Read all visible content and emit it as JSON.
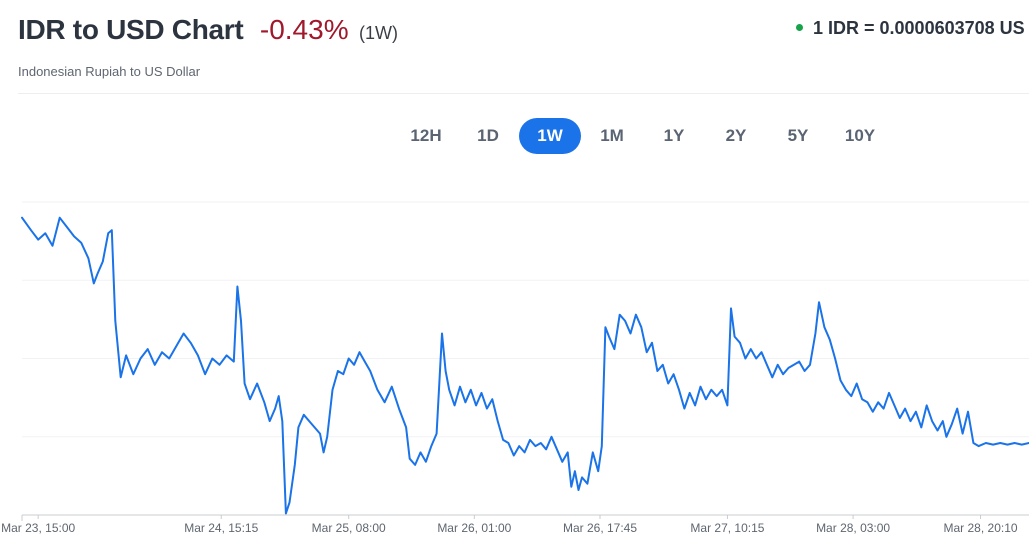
{
  "header": {
    "title": "IDR to USD Chart",
    "change": "-0.43%",
    "period": "(1W)",
    "subtitle": "Indonesian Rupiah to US Dollar",
    "rate": "1 IDR = 0.0000603708 US"
  },
  "tabs": [
    {
      "label": "12H",
      "active": false
    },
    {
      "label": "1D",
      "active": false
    },
    {
      "label": "1W",
      "active": true
    },
    {
      "label": "1M",
      "active": false
    },
    {
      "label": "1Y",
      "active": false
    },
    {
      "label": "2Y",
      "active": false
    },
    {
      "label": "5Y",
      "active": false
    },
    {
      "label": "10Y",
      "active": false
    }
  ],
  "colors": {
    "line": "#1a73e8",
    "negative": "#a0182c",
    "live_dot": "#16a34a",
    "active_tab": "#1a73e8"
  },
  "chart_data": {
    "type": "line",
    "title": "IDR to USD Chart",
    "xlabel": "",
    "ylabel": "",
    "grid": true,
    "x_ticks": [
      "Mar 23, 15:00",
      "Mar 24, 15:15",
      "Mar 25, 08:00",
      "Mar 26, 01:00",
      "Mar 26, 17:45",
      "Mar 27, 10:15",
      "Mar 28, 03:00",
      "Mar 28, 20:10"
    ],
    "x_tick_positions": [
      0.09,
      1.11,
      1.82,
      2.52,
      3.22,
      3.93,
      4.63,
      5.34
    ],
    "x_range": [
      0,
      5.61
    ],
    "ylim": [
      0,
      100
    ],
    "series": [
      {
        "values": [
          [
            0.0,
            95.0
          ],
          [
            0.05,
            91.0
          ],
          [
            0.09,
            88.0
          ],
          [
            0.13,
            90.0
          ],
          [
            0.17,
            86.0
          ],
          [
            0.21,
            95.0
          ],
          [
            0.25,
            92.0
          ],
          [
            0.29,
            89.0
          ],
          [
            0.33,
            87.0
          ],
          [
            0.37,
            82.0
          ],
          [
            0.4,
            74.0
          ],
          [
            0.42,
            77.0
          ],
          [
            0.45,
            81.0
          ],
          [
            0.48,
            90.0
          ],
          [
            0.5,
            91.0
          ],
          [
            0.52,
            62.0
          ],
          [
            0.55,
            44.0
          ],
          [
            0.58,
            51.0
          ],
          [
            0.62,
            45.0
          ],
          [
            0.66,
            50.0
          ],
          [
            0.7,
            53.0
          ],
          [
            0.74,
            48.0
          ],
          [
            0.78,
            52.0
          ],
          [
            0.82,
            50.0
          ],
          [
            0.86,
            54.0
          ],
          [
            0.9,
            58.0
          ],
          [
            0.94,
            55.0
          ],
          [
            0.98,
            51.0
          ],
          [
            1.02,
            45.0
          ],
          [
            1.06,
            50.0
          ],
          [
            1.1,
            48.0
          ],
          [
            1.14,
            51.0
          ],
          [
            1.18,
            49.0
          ],
          [
            1.2,
            73.0
          ],
          [
            1.22,
            62.0
          ],
          [
            1.24,
            42.0
          ],
          [
            1.27,
            37.0
          ],
          [
            1.31,
            42.0
          ],
          [
            1.35,
            36.0
          ],
          [
            1.38,
            30.0
          ],
          [
            1.41,
            34.0
          ],
          [
            1.43,
            38.0
          ],
          [
            1.45,
            30.0
          ],
          [
            1.47,
            0.5
          ],
          [
            1.49,
            4.0
          ],
          [
            1.52,
            16.0
          ],
          [
            1.54,
            28.0
          ],
          [
            1.57,
            32.0
          ],
          [
            1.6,
            30.0
          ],
          [
            1.63,
            28.0
          ],
          [
            1.66,
            26.0
          ],
          [
            1.68,
            20.0
          ],
          [
            1.7,
            25.0
          ],
          [
            1.73,
            40.0
          ],
          [
            1.76,
            46.0
          ],
          [
            1.79,
            45.0
          ],
          [
            1.82,
            50.0
          ],
          [
            1.85,
            48.0
          ],
          [
            1.88,
            52.0
          ],
          [
            1.91,
            49.0
          ],
          [
            1.94,
            46.0
          ],
          [
            1.98,
            40.0
          ],
          [
            2.02,
            36.0
          ],
          [
            2.06,
            41.0
          ],
          [
            2.1,
            34.0
          ],
          [
            2.14,
            28.0
          ],
          [
            2.16,
            18.0
          ],
          [
            2.19,
            16.0
          ],
          [
            2.22,
            20.0
          ],
          [
            2.25,
            17.0
          ],
          [
            2.28,
            22.0
          ],
          [
            2.31,
            26.0
          ],
          [
            2.34,
            58.0
          ],
          [
            2.36,
            46.0
          ],
          [
            2.38,
            40.0
          ],
          [
            2.41,
            35.0
          ],
          [
            2.44,
            41.0
          ],
          [
            2.47,
            36.0
          ],
          [
            2.5,
            40.0
          ],
          [
            2.53,
            35.0
          ],
          [
            2.56,
            39.0
          ],
          [
            2.59,
            34.0
          ],
          [
            2.62,
            37.0
          ],
          [
            2.65,
            30.0
          ],
          [
            2.68,
            24.0
          ],
          [
            2.71,
            23.0
          ],
          [
            2.74,
            19.0
          ],
          [
            2.77,
            22.0
          ],
          [
            2.8,
            20.0
          ],
          [
            2.83,
            24.0
          ],
          [
            2.86,
            22.0
          ],
          [
            2.89,
            23.0
          ],
          [
            2.92,
            21.0
          ],
          [
            2.95,
            25.0
          ],
          [
            2.98,
            21.0
          ],
          [
            3.01,
            17.0
          ],
          [
            3.04,
            20.0
          ],
          [
            3.06,
            9.0
          ],
          [
            3.08,
            14.0
          ],
          [
            3.1,
            8.0
          ],
          [
            3.12,
            12.0
          ],
          [
            3.15,
            10.0
          ],
          [
            3.18,
            20.0
          ],
          [
            3.21,
            14.0
          ],
          [
            3.23,
            22.0
          ],
          [
            3.25,
            60.0
          ],
          [
            3.27,
            57.0
          ],
          [
            3.3,
            53.0
          ],
          [
            3.33,
            64.0
          ],
          [
            3.36,
            62.0
          ],
          [
            3.39,
            58.0
          ],
          [
            3.42,
            64.0
          ],
          [
            3.45,
            60.0
          ],
          [
            3.48,
            52.0
          ],
          [
            3.51,
            55.0
          ],
          [
            3.54,
            46.0
          ],
          [
            3.57,
            48.0
          ],
          [
            3.6,
            42.0
          ],
          [
            3.63,
            45.0
          ],
          [
            3.66,
            40.0
          ],
          [
            3.69,
            34.0
          ],
          [
            3.72,
            39.0
          ],
          [
            3.75,
            35.0
          ],
          [
            3.78,
            41.0
          ],
          [
            3.81,
            37.0
          ],
          [
            3.84,
            40.0
          ],
          [
            3.87,
            38.0
          ],
          [
            3.9,
            40.0
          ],
          [
            3.93,
            35.0
          ],
          [
            3.95,
            66.0
          ],
          [
            3.97,
            57.0
          ],
          [
            4.0,
            55.0
          ],
          [
            4.03,
            50.0
          ],
          [
            4.06,
            53.0
          ],
          [
            4.09,
            50.0
          ],
          [
            4.12,
            52.0
          ],
          [
            4.15,
            48.0
          ],
          [
            4.18,
            44.0
          ],
          [
            4.21,
            48.0
          ],
          [
            4.24,
            45.0
          ],
          [
            4.27,
            47.0
          ],
          [
            4.3,
            48.0
          ],
          [
            4.33,
            49.0
          ],
          [
            4.36,
            46.0
          ],
          [
            4.39,
            48.0
          ],
          [
            4.42,
            58.0
          ],
          [
            4.44,
            68.0
          ],
          [
            4.47,
            60.0
          ],
          [
            4.5,
            56.0
          ],
          [
            4.53,
            50.0
          ],
          [
            4.56,
            43.0
          ],
          [
            4.59,
            40.0
          ],
          [
            4.62,
            38.0
          ],
          [
            4.65,
            42.0
          ],
          [
            4.68,
            37.0
          ],
          [
            4.71,
            36.0
          ],
          [
            4.74,
            33.0
          ],
          [
            4.77,
            36.0
          ],
          [
            4.8,
            34.0
          ],
          [
            4.83,
            39.0
          ],
          [
            4.86,
            35.0
          ],
          [
            4.89,
            31.0
          ],
          [
            4.92,
            34.0
          ],
          [
            4.95,
            30.0
          ],
          [
            4.98,
            33.0
          ],
          [
            5.01,
            28.0
          ],
          [
            5.04,
            35.0
          ],
          [
            5.07,
            30.0
          ],
          [
            5.1,
            27.0
          ],
          [
            5.13,
            30.0
          ],
          [
            5.15,
            25.0
          ],
          [
            5.18,
            29.0
          ],
          [
            5.21,
            34.0
          ],
          [
            5.24,
            26.0
          ],
          [
            5.27,
            33.0
          ],
          [
            5.3,
            23.0
          ],
          [
            5.33,
            22.0
          ],
          [
            5.37,
            23.0
          ],
          [
            5.41,
            22.5
          ],
          [
            5.45,
            23.0
          ],
          [
            5.49,
            22.5
          ],
          [
            5.53,
            23.0
          ],
          [
            5.57,
            22.5
          ],
          [
            5.61,
            23.0
          ]
        ]
      }
    ]
  }
}
